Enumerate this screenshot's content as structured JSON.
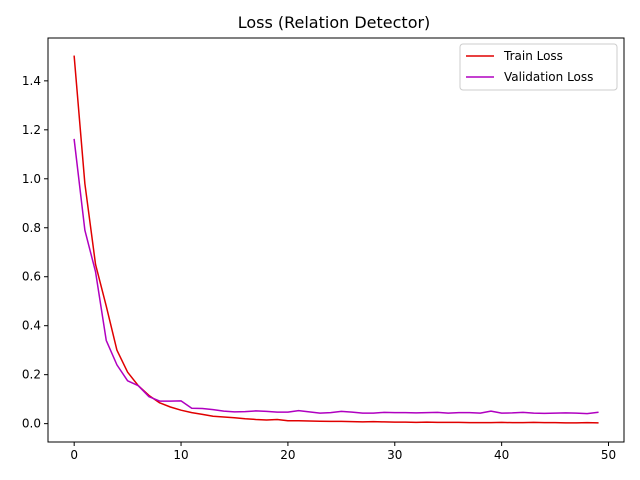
{
  "chart_data": {
    "type": "line",
    "title": "Loss (Relation Detector)",
    "xlabel": "",
    "ylabel": "",
    "xlim": [
      -2.45,
      51.45
    ],
    "ylim": [
      -0.075,
      1.575
    ],
    "xticks": [
      0,
      10,
      20,
      30,
      40,
      50
    ],
    "yticks": [
      0.0,
      0.2,
      0.4,
      0.6,
      0.8,
      1.0,
      1.2,
      1.4
    ],
    "ytick_labels": [
      "0.0",
      "0.2",
      "0.4",
      "0.6",
      "0.8",
      "1.0",
      "1.2",
      "1.4"
    ],
    "grid": false,
    "legend_position": "upper right",
    "x": [
      0,
      1,
      2,
      3,
      4,
      5,
      6,
      7,
      8,
      9,
      10,
      11,
      12,
      13,
      14,
      15,
      16,
      17,
      18,
      19,
      20,
      21,
      22,
      23,
      24,
      25,
      26,
      27,
      28,
      29,
      30,
      31,
      32,
      33,
      34,
      35,
      36,
      37,
      38,
      39,
      40,
      41,
      42,
      43,
      44,
      45,
      46,
      47,
      48,
      49
    ],
    "series": [
      {
        "name": "Train Loss",
        "color": "#e00000",
        "values": [
          1.5,
          0.98,
          0.65,
          0.48,
          0.3,
          0.21,
          0.155,
          0.115,
          0.085,
          0.068,
          0.055,
          0.045,
          0.038,
          0.03,
          0.027,
          0.024,
          0.02,
          0.017,
          0.015,
          0.017,
          0.012,
          0.012,
          0.011,
          0.01,
          0.009,
          0.009,
          0.008,
          0.007,
          0.008,
          0.007,
          0.006,
          0.006,
          0.005,
          0.006,
          0.005,
          0.005,
          0.005,
          0.004,
          0.004,
          0.004,
          0.005,
          0.004,
          0.004,
          0.005,
          0.004,
          0.004,
          0.003,
          0.003,
          0.004,
          0.003
        ]
      },
      {
        "name": "Validation Loss",
        "color": "#b000c0",
        "values": [
          1.16,
          0.79,
          0.62,
          0.34,
          0.24,
          0.175,
          0.155,
          0.11,
          0.092,
          0.092,
          0.093,
          0.063,
          0.062,
          0.057,
          0.051,
          0.048,
          0.049,
          0.052,
          0.05,
          0.047,
          0.047,
          0.053,
          0.048,
          0.043,
          0.045,
          0.05,
          0.047,
          0.043,
          0.043,
          0.046,
          0.045,
          0.045,
          0.044,
          0.045,
          0.046,
          0.043,
          0.045,
          0.045,
          0.043,
          0.051,
          0.043,
          0.044,
          0.046,
          0.043,
          0.042,
          0.043,
          0.044,
          0.043,
          0.041,
          0.046
        ]
      }
    ]
  }
}
